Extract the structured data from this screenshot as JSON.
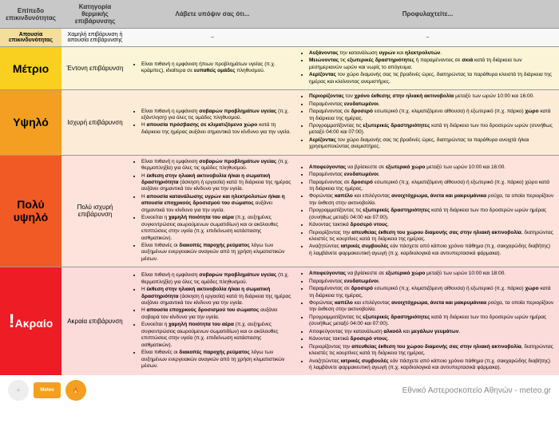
{
  "headers": [
    "Επίπεδο επικινδυνότητας",
    "Κατηγορία θερμικής επιβάρυνσης",
    "Λάβετε υπόψιν σας ότι...",
    "Προφυλαχτείτε..."
  ],
  "rows": [
    {
      "level": "Απουσία επικινδυνότητας",
      "category": "Χαμηλή επιβάρυνση ή απουσία επιβάρυνσης",
      "consider": [
        "–"
      ],
      "precaution": [
        "–"
      ],
      "plain": true
    },
    {
      "level": "Μέτριο",
      "category": "Έντονη επιβάρυνση",
      "consider": [
        "Είναι πιθανή η εμφάνιση ήπιων προβλημάτων υγείας (π.χ. κράμπες), ιδιαίτερα σε <b>ευπαθείς ομάδες</b> πληθυσμού."
      ],
      "precaution": [
        "<b>Αυξάνοντας</b> την κατανάλωση <b>υγρών</b> και <b>ηλεκτρολυτών</b>.",
        "<b>Μειώνοντας</b> τις <b>εξωτερικές δραστηριότητες</b> ή παραμένοντας σε <b>σκιά</b> κατά τη διάρκεια των μεσημεριανών ωρών και νωρίς το απόγευμα.",
        "<b>Αερίζοντας</b> τον χώρο διαμονής σας τις βραδινές ώρες, διατηρώντας τα παράθυρα κλειστά τη διάρκεια της ημέρας και κλείνοντας ανεμιστήρες."
      ]
    },
    {
      "level": "Υψηλό",
      "category": "Ισχυρή επιβάρυνση",
      "consider": [
        "Είναι πιθανή η εμφάνιση <b>σοβαρών προβλημάτων υγείας</b> (π.χ. εξάντληση) για όλες τις ομάδες πληθυσμού.",
        "Η <b>απουσία πρόσβασης σε κλιματιζόμενο χώρο</b> κατά τη διάρκεια της ημέρας αυξάνει σημαντικά τον κίνδυνο για την υγεία."
      ],
      "precaution": [
        "<b>Περιορίζοντας</b> τον <b>χρόνο έκθεσης στην ηλιακή ακτινοβολία</b> μεταξύ των ωρών 10:00 και 16:00.",
        "Παραμένοντας <b>ενυδατωμένοι</b>.",
        "Παραμένοντας σε <b>δροσερό</b> εσωτερικό (π.χ. κλιματιζόμενο αίθουσα) ή εξωτερικό (π.χ. πάρκο) <b>χώρο</b> κατά τη διάρκεια της ημέρας.",
        "Προγραμματίζοντας τις <b>εξωτερικές δραστηριότητες</b> κατά τη διάρκεια των πιο δροσερών ωρών (συνήθως μεταξύ 04:00 και 07:00).",
        "<b>Αερίζοντας</b> τον χώρο διαμονής σας τις βραδινές ώρες, διατηρώντας τα παράθυρα ανοιχτά ή/και χρησιμοποιώντας ανεμιστήρες."
      ]
    },
    {
      "level": "Πολύ υψηλό",
      "category": "Πολύ ισχυρή επιβάρυνση",
      "consider": [
        "Είναι πιθανή η εμφάνιση <b>σοβαρών προβλημάτων υγείας</b> (π.χ. θερμοπληξία) για όλες τις ομάδες πληθυσμού.",
        "Η <b>έκθεση στην ηλιακή ακτινοβολία ή/και η σωματική δραστηριότητα</b> (άσκηση ή εργασία) κατά τη διάρκεια της ημέρας αυξάνει σημαντικά τον κίνδυνο για την υγεία.",
        "Η <b>απουσία κατανάλωσης υγρών και ηλεκτρολυτών ή/και η απουσία εποχρκούς δροσισμού του σώματος</b> αυξάνει σημαντικά τον κίνδυνο για την υγεία.",
        "Ευνοείται η <b>χαμηλή ποιότητα του αέρα</b> (π.χ. αυξημένες συγκεντρώσεις αιωρούμενων σωματιδίων) και οι ακόλουθες επιπτώσεις στην υγεία (π.χ. επιδείνωση κατάστασης ασθματικών).",
        "Είναι πιθανές οι <b>διακοπές παροχής ρεύματος</b> λόγω των αυξημένων ενεργειακών αναγκών από τη χρήση κλιματιστικών μέσων."
      ],
      "precaution": [
        "<b>Αποφεύγοντας</b> να βρίσκεστε σε <b>εξωτερικό χώρο</b> μεταξύ των ωρών 10:00 και 16:00.",
        "Παραμένοντας <b>ενυδατωμένοι</b>.",
        "Παραμένοντας σε <b>δροσερό</b> εσωτερικό (π.χ. κλιματιζόμενη αίθουσα) ή εξωτερικό (π.χ. πάρκο) χώρο κατά τη διάρκεια της ημέρας.",
        "Φορώντας <b>καπέλο</b> και επιλέγοντας <b>ανοιχτόχρωμα, άνετα και μακρυμάνικα</b> ρούχα, τα οποία περιορίζουν την έκθεση στην ακτινοβολία.",
        "Προγραμματίζοντας τις <b>εξωτερικές δραστηριότητες</b> κατά τη διάρκεια των πιο δροσερών ωρών ημέρας (συνήθως μεταξύ 04:00 και 07:00).",
        "Κάνοντας τακτικά <b>δροσερό ντους</b>.",
        "Περιορίζοντας την <b>απευθείας έκθεση του χώρου διαμονής σας στην ηλιακή ακτινοβολία</b>, διατηρώντας κλειστές τις κουρτίνες κατά τη διάρκεια της ημέρας.",
        "Αναζητώντας <b>ιατρικές συμβουλές</b> εάν πάσχετε από κάποιο χρόνιο πάθημα (π.χ. σακχαρώδης διαβήτης) ή λαμβάνετε φαρμακευτική αγωγή (π.χ. καρδιολογικά και αντιυπερτασικά φάρμακα)."
      ]
    },
    {
      "level": "Ακραίο",
      "excl": "!",
      "category": "Ακραία επιβάρυνση",
      "consider": [
        "Είναι πιθανή η εμφάνιση <b>σοβαρών προβλημάτων υγείας</b> (π.χ. θερμοπληξία) για όλες τις ομάδες πληθυσμού.",
        "Η <b>έκθεση στην ηλιακή ακτινοβολία ή/και η σωματική δραστηριότητα</b> (άσκηση ή εργασία) κατά τη διάρκεια της ημέρας αυξάνει σημαντικά τον κίνδυνο για την υγεία.",
        "Η <b>απουσία εποχρκούς δροσισμού του σώματος</b> αυξάνει σοβαρά τον κίνδυνο για την υγεία.",
        "Ευνοείται η <b>χαμηλή ποιότητα του αέρα</b> (π.χ. αυξημένες συγκεντρώσεις αιωρούμενων σωματιδίων) και οι ακόλουθες επιπτώσεις στην υγεία (π.χ. επιδείνωση κατάστασης ασθματικών).",
        "Είναι πιθανές οι <b>διακοπές παροχής ρεύματος</b> λόγω των αυξημένων ενεργειακών αναγκών από τη χρήση κλιματιστικών μέσων."
      ],
      "precaution": [
        "<b>Αποφεύγοντας</b> να βρίσκεστε σε <b>εξωτερικό χώρο</b> μεταξύ των ωρών 10:00 και 18:00.",
        "Παραμένοντας <b>ενυδατωμένοι</b>.",
        "Παραμένοντας σε <b>δροσερό</b> εσωτερικό (π.χ. κλιματιζόμενη αίθουσα) ή εξωτερικό (π.χ. πάρκο) <b>χώρο</b> κατά τη διάρκεια της ημέρας.",
        "Φορώντας <b>καπέλο</b> και επιλέγοντας <b>ανοιχτόχρωμα, άνετα και μακρυμάνικα</b> ρούχα, τα οποία περιορίζουν την έκθεση στην ακτινοβολία.",
        "Προγραμματίζοντας τις <b>εξωτερικές δραστηριότητες</b> κατά τη διάρκεια των πιο δροσερών ωρών ημέρας (συνήθως μεταξύ 04:00 και 07:00).",
        "Αποφεύγοντας την κατανάλωση <b>αλκοόλ</b> και <b>μεγάλων γευμάτων</b>.",
        "Κάνοντας τακτικά <b>δροσερό ντους</b>.",
        "Περιορίζοντας την <b>απευθείας έκθεση του χώρου διαμονής σας στην ηλιακή ακτινοβολία</b>, διατηρώντας κλειστές τις κουρτίνες κατά τη διάρκεια της ημέρας.",
        "Αναζητώντας <b>ιατρικές συμβουλές</b> εάν πάσχετε από κάποιο χρόνιο πάθημα (π.χ. σακχαρώδης διαβήτης) ή λαμβάνετε φαρμακευτική αγωγή (π.χ. καρδιολογικά και αντιυπερτασικά φάρμακα)."
      ]
    }
  ],
  "footer": {
    "logos": [
      "⚛",
      "Meteo",
      "🔥"
    ],
    "credit": "Εθνικό Αστεροσκοπείο Αθηνών - meteo.gr"
  },
  "colors": {
    "header_bg": "#c8c8c8",
    "levels": [
      "#f3df9c",
      "#f9cf20",
      "#f49f21",
      "#f15925",
      "#ed1c25"
    ]
  }
}
